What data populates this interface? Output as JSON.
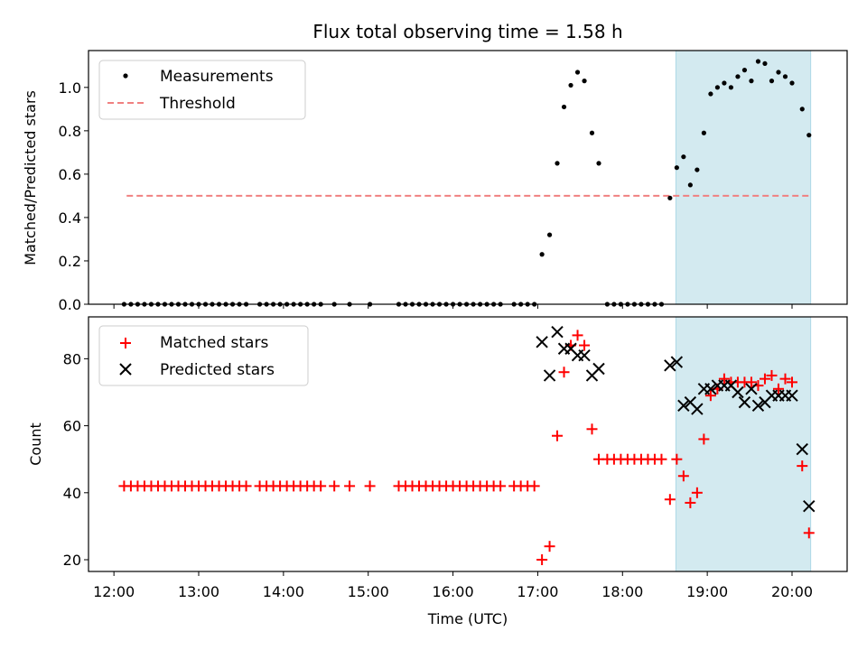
{
  "chart_data": {
    "type": "scatter",
    "title": "Flux total observing time = 1.58 h",
    "xlabel": "Time (UTC)",
    "x_ticks": [
      "12:00",
      "13:00",
      "14:00",
      "15:00",
      "16:00",
      "17:00",
      "18:00",
      "19:00",
      "20:00"
    ],
    "xlim": [
      11.7,
      20.65
    ],
    "highlight_span": {
      "from": 18.63,
      "to": 20.22,
      "color": "#d3eaf0"
    },
    "panels": [
      {
        "ylabel": "Matched/Predicted stars",
        "ylim": [
          0,
          1.17
        ],
        "y_ticks": [
          0.0,
          0.2,
          0.4,
          0.6,
          0.8,
          1.0
        ],
        "y_tick_labels": [
          "0.0",
          "0.2",
          "0.4",
          "0.6",
          "0.8",
          "1.0"
        ],
        "legend_position": "upper left",
        "threshold": {
          "name": "Threshold",
          "value": 0.5,
          "x_from": 12.15,
          "x_to": 20.2,
          "color": "#f08080"
        },
        "series": [
          {
            "name": "Measurements",
            "marker": "dot",
            "color": "#000000",
            "points": [
              [
                12.12,
                0
              ],
              [
                12.2,
                0
              ],
              [
                12.28,
                0
              ],
              [
                12.36,
                0
              ],
              [
                12.44,
                0
              ],
              [
                12.52,
                0
              ],
              [
                12.6,
                0
              ],
              [
                12.68,
                0
              ],
              [
                12.76,
                0
              ],
              [
                12.84,
                0
              ],
              [
                12.92,
                0
              ],
              [
                13.0,
                0
              ],
              [
                13.08,
                0
              ],
              [
                13.16,
                0
              ],
              [
                13.24,
                0
              ],
              [
                13.32,
                0
              ],
              [
                13.4,
                0
              ],
              [
                13.48,
                0
              ],
              [
                13.56,
                0
              ],
              [
                13.72,
                0
              ],
              [
                13.8,
                0
              ],
              [
                13.88,
                0
              ],
              [
                13.96,
                0
              ],
              [
                14.04,
                0
              ],
              [
                14.12,
                0
              ],
              [
                14.2,
                0
              ],
              [
                14.28,
                0
              ],
              [
                14.36,
                0
              ],
              [
                14.44,
                0
              ],
              [
                14.6,
                0
              ],
              [
                14.78,
                0
              ],
              [
                15.02,
                0
              ],
              [
                15.36,
                0
              ],
              [
                15.44,
                0
              ],
              [
                15.52,
                0
              ],
              [
                15.6,
                0
              ],
              [
                15.68,
                0
              ],
              [
                15.76,
                0
              ],
              [
                15.84,
                0
              ],
              [
                15.92,
                0
              ],
              [
                16.0,
                0
              ],
              [
                16.08,
                0
              ],
              [
                16.16,
                0
              ],
              [
                16.24,
                0
              ],
              [
                16.32,
                0
              ],
              [
                16.4,
                0
              ],
              [
                16.48,
                0
              ],
              [
                16.56,
                0
              ],
              [
                16.72,
                0
              ],
              [
                16.8,
                0
              ],
              [
                16.88,
                0
              ],
              [
                16.96,
                0
              ],
              [
                17.05,
                0.23
              ],
              [
                17.14,
                0.32
              ],
              [
                17.23,
                0.65
              ],
              [
                17.31,
                0.91
              ],
              [
                17.39,
                1.01
              ],
              [
                17.47,
                1.07
              ],
              [
                17.55,
                1.03
              ],
              [
                17.64,
                0.79
              ],
              [
                17.72,
                0.65
              ],
              [
                17.82,
                0
              ],
              [
                17.9,
                0
              ],
              [
                17.98,
                0
              ],
              [
                18.06,
                0
              ],
              [
                18.14,
                0
              ],
              [
                18.22,
                0
              ],
              [
                18.3,
                0
              ],
              [
                18.38,
                0
              ],
              [
                18.46,
                0
              ],
              [
                18.56,
                0.49
              ],
              [
                18.64,
                0.63
              ],
              [
                18.72,
                0.68
              ],
              [
                18.8,
                0.55
              ],
              [
                18.88,
                0.62
              ],
              [
                18.96,
                0.79
              ],
              [
                19.04,
                0.97
              ],
              [
                19.12,
                1.0
              ],
              [
                19.2,
                1.02
              ],
              [
                19.28,
                1.0
              ],
              [
                19.36,
                1.05
              ],
              [
                19.44,
                1.08
              ],
              [
                19.52,
                1.03
              ],
              [
                19.6,
                1.12
              ],
              [
                19.68,
                1.11
              ],
              [
                19.76,
                1.03
              ],
              [
                19.84,
                1.07
              ],
              [
                19.92,
                1.05
              ],
              [
                20.0,
                1.02
              ],
              [
                20.12,
                0.9
              ],
              [
                20.2,
                0.78
              ]
            ]
          }
        ]
      },
      {
        "ylabel": "Count",
        "ylim": [
          16.5,
          92.5
        ],
        "y_ticks": [
          20,
          40,
          60,
          80
        ],
        "y_tick_labels": [
          "20",
          "40",
          "60",
          "80"
        ],
        "legend_position": "upper left",
        "series": [
          {
            "name": "Matched stars",
            "marker": "plus",
            "color": "#ff0000",
            "points": [
              [
                12.12,
                42
              ],
              [
                12.2,
                42
              ],
              [
                12.28,
                42
              ],
              [
                12.36,
                42
              ],
              [
                12.44,
                42
              ],
              [
                12.52,
                42
              ],
              [
                12.6,
                42
              ],
              [
                12.68,
                42
              ],
              [
                12.76,
                42
              ],
              [
                12.84,
                42
              ],
              [
                12.92,
                42
              ],
              [
                13.0,
                42
              ],
              [
                13.08,
                42
              ],
              [
                13.16,
                42
              ],
              [
                13.24,
                42
              ],
              [
                13.32,
                42
              ],
              [
                13.4,
                42
              ],
              [
                13.48,
                42
              ],
              [
                13.56,
                42
              ],
              [
                13.72,
                42
              ],
              [
                13.8,
                42
              ],
              [
                13.88,
                42
              ],
              [
                13.96,
                42
              ],
              [
                14.04,
                42
              ],
              [
                14.12,
                42
              ],
              [
                14.2,
                42
              ],
              [
                14.28,
                42
              ],
              [
                14.36,
                42
              ],
              [
                14.44,
                42
              ],
              [
                14.6,
                42
              ],
              [
                14.78,
                42
              ],
              [
                15.02,
                42
              ],
              [
                15.36,
                42
              ],
              [
                15.44,
                42
              ],
              [
                15.52,
                42
              ],
              [
                15.6,
                42
              ],
              [
                15.68,
                42
              ],
              [
                15.76,
                42
              ],
              [
                15.84,
                42
              ],
              [
                15.92,
                42
              ],
              [
                16.0,
                42
              ],
              [
                16.08,
                42
              ],
              [
                16.16,
                42
              ],
              [
                16.24,
                42
              ],
              [
                16.32,
                42
              ],
              [
                16.4,
                42
              ],
              [
                16.48,
                42
              ],
              [
                16.56,
                42
              ],
              [
                16.72,
                42
              ],
              [
                16.8,
                42
              ],
              [
                16.88,
                42
              ],
              [
                16.96,
                42
              ],
              [
                17.05,
                20
              ],
              [
                17.14,
                24
              ],
              [
                17.23,
                57
              ],
              [
                17.31,
                76
              ],
              [
                17.39,
                84
              ],
              [
                17.47,
                87
              ],
              [
                17.55,
                84
              ],
              [
                17.64,
                59
              ],
              [
                17.72,
                50
              ],
              [
                17.82,
                50
              ],
              [
                17.9,
                50
              ],
              [
                17.98,
                50
              ],
              [
                18.06,
                50
              ],
              [
                18.14,
                50
              ],
              [
                18.22,
                50
              ],
              [
                18.3,
                50
              ],
              [
                18.38,
                50
              ],
              [
                18.46,
                50
              ],
              [
                18.56,
                38
              ],
              [
                18.64,
                50
              ],
              [
                18.72,
                45
              ],
              [
                18.8,
                37
              ],
              [
                18.88,
                40
              ],
              [
                18.96,
                56
              ],
              [
                19.04,
                69
              ],
              [
                19.12,
                71
              ],
              [
                19.2,
                74
              ],
              [
                19.28,
                73
              ],
              [
                19.36,
                73
              ],
              [
                19.44,
                73
              ],
              [
                19.52,
                73
              ],
              [
                19.6,
                72
              ],
              [
                19.68,
                74
              ],
              [
                19.76,
                75
              ],
              [
                19.84,
                71
              ],
              [
                19.92,
                74
              ],
              [
                20.0,
                73
              ],
              [
                20.12,
                48
              ],
              [
                20.2,
                28
              ]
            ]
          },
          {
            "name": "Predicted stars",
            "marker": "x",
            "color": "#000000",
            "points": [
              [
                17.05,
                85
              ],
              [
                17.14,
                75
              ],
              [
                17.23,
                88
              ],
              [
                17.31,
                83
              ],
              [
                17.39,
                83
              ],
              [
                17.47,
                81
              ],
              [
                17.55,
                81
              ],
              [
                17.64,
                75
              ],
              [
                17.72,
                77
              ],
              [
                18.56,
                78
              ],
              [
                18.64,
                79
              ],
              [
                18.72,
                66
              ],
              [
                18.8,
                67
              ],
              [
                18.88,
                65
              ],
              [
                18.96,
                71
              ],
              [
                19.04,
                71
              ],
              [
                19.12,
                72
              ],
              [
                19.2,
                72
              ],
              [
                19.28,
                72
              ],
              [
                19.36,
                70
              ],
              [
                19.44,
                67
              ],
              [
                19.52,
                71
              ],
              [
                19.6,
                66
              ],
              [
                19.68,
                67
              ],
              [
                19.76,
                69
              ],
              [
                19.84,
                69
              ],
              [
                19.92,
                69
              ],
              [
                20.0,
                69
              ],
              [
                20.12,
                53
              ],
              [
                20.2,
                36
              ]
            ]
          }
        ]
      }
    ]
  }
}
